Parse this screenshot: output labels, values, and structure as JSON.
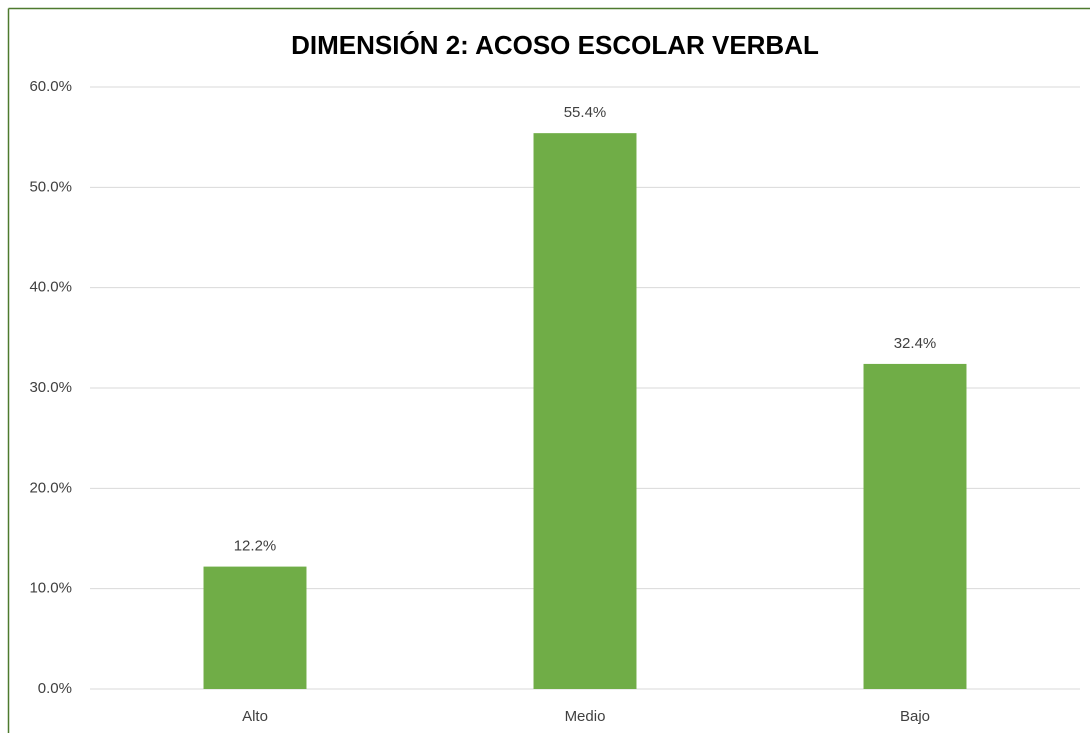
{
  "chart_data": {
    "type": "bar",
    "title": "DIMENSIÓN 2: ACOSO ESCOLAR VERBAL",
    "categories": [
      "Alto",
      "Medio",
      "Bajo"
    ],
    "values": [
      12.2,
      55.4,
      32.4
    ],
    "value_labels": [
      "12.2%",
      "55.4%",
      "32.4%"
    ],
    "color": "#70ad47",
    "ylim": [
      0,
      60
    ],
    "yticks": [
      {
        "value": 0,
        "label": "0.0%"
      },
      {
        "value": 10,
        "label": "10.0%"
      },
      {
        "value": 20,
        "label": "20.0%"
      },
      {
        "value": 30,
        "label": "30.0%"
      },
      {
        "value": 40,
        "label": "40.0%"
      },
      {
        "value": 50,
        "label": "50.0%"
      },
      {
        "value": 60,
        "label": "60.0%"
      }
    ],
    "grid": true
  }
}
